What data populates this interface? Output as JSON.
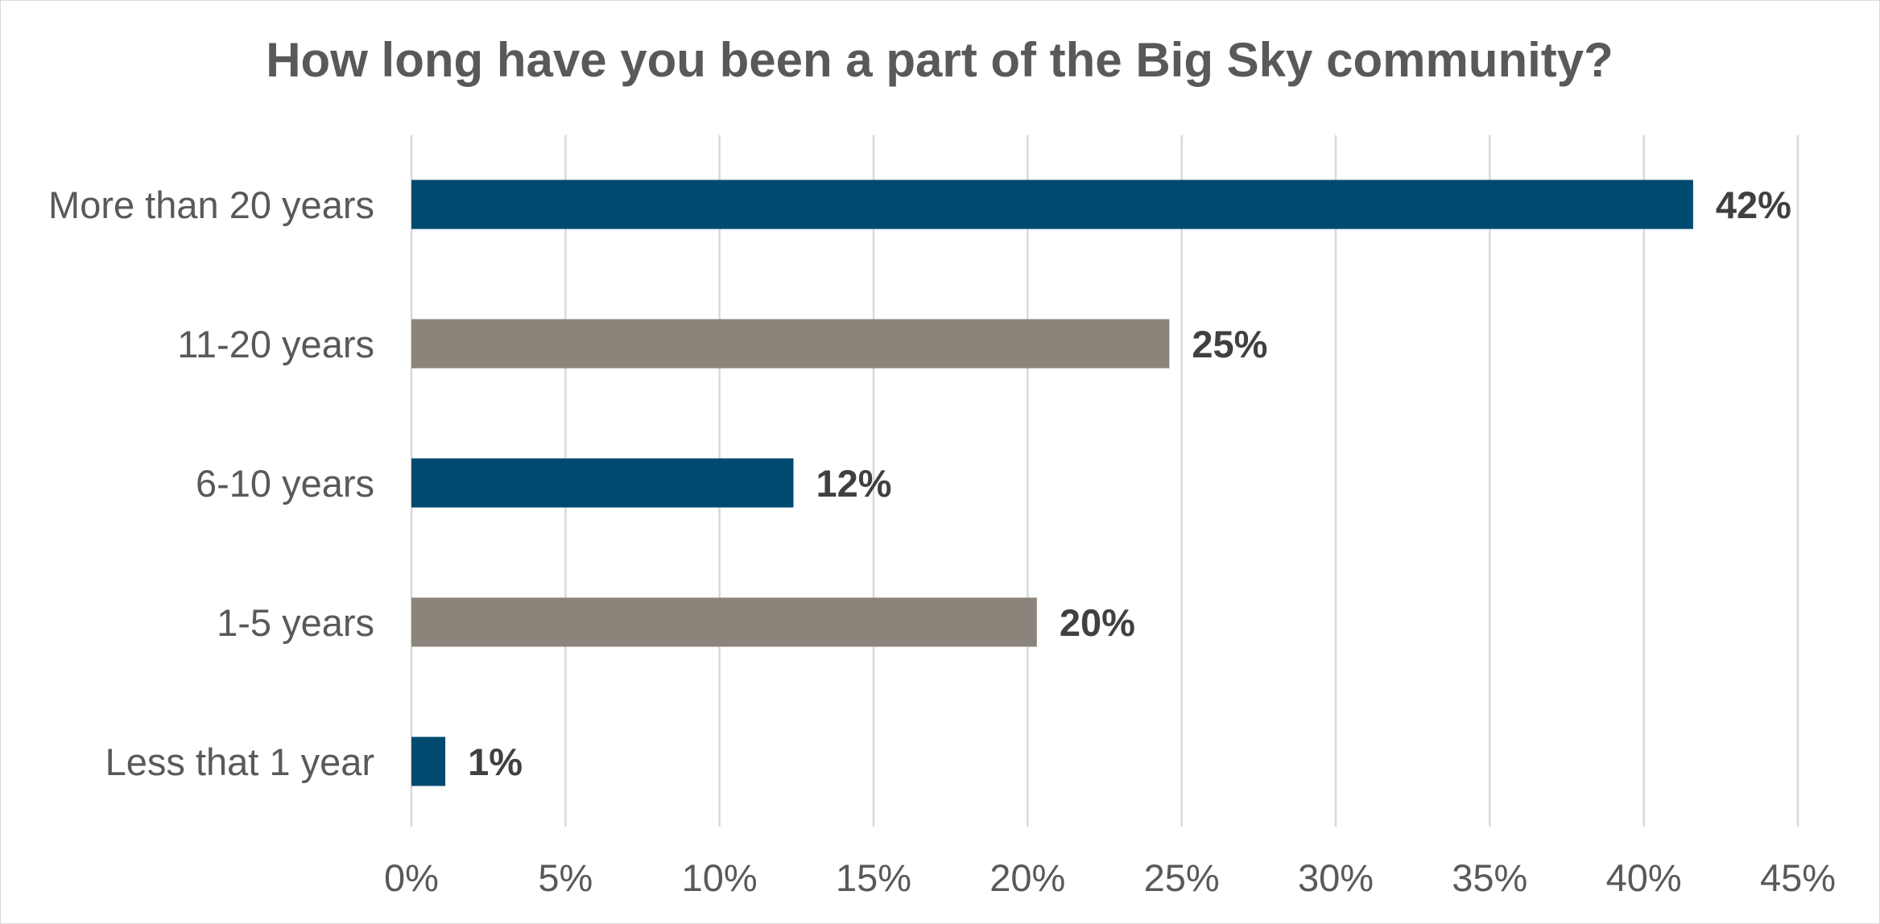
{
  "chart_data": {
    "type": "bar",
    "orientation": "horizontal",
    "title": "How long have you been a part of the Big Sky community?",
    "categories": [
      "More than 20 years",
      "11-20 years",
      "6-10 years",
      "1-5 years",
      "Less that 1 year"
    ],
    "values": [
      41.6,
      24.6,
      12.4,
      20.3,
      1.1
    ],
    "data_labels": [
      "42%",
      "25%",
      "12%",
      "20%",
      "1%"
    ],
    "bar_colors": [
      "#004a70",
      "#8b847a",
      "#004a70",
      "#8b847a",
      "#004a70"
    ],
    "xlim": [
      0,
      45
    ],
    "x_ticks": [
      0,
      5,
      10,
      15,
      20,
      25,
      30,
      35,
      40,
      45
    ],
    "x_tick_labels": [
      "0%",
      "5%",
      "10%",
      "15%",
      "20%",
      "25%",
      "30%",
      "35%",
      "40%",
      "45%"
    ],
    "xlabel": "",
    "ylabel": "",
    "grid": "vertical",
    "legend": "none"
  }
}
